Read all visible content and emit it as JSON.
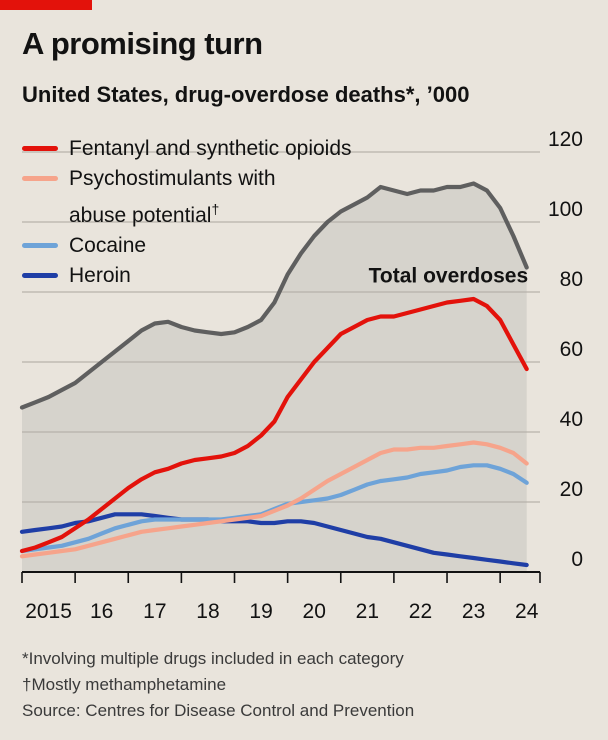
{
  "header": {
    "title": "A promising turn",
    "subtitle": "United States, drug-overdose deaths*, ’000"
  },
  "legend": [
    {
      "line1": "Fentanyl and synthetic opioids",
      "color": "#e3120b"
    },
    {
      "line1": "Psychostimulants with",
      "line2": "abuse potential",
      "sup": "†",
      "color": "#f6a48b"
    },
    {
      "line1": "Cocaine",
      "color": "#6ea3d8"
    },
    {
      "line1": "Heroin",
      "color": "#1f3ea6"
    }
  ],
  "notes": {
    "footnote1": "*Involving multiple drugs included in each category",
    "footnote2": "†Mostly methamphetamine",
    "source": "Source: Centres for Disease Control and Prevention"
  },
  "chart_data": {
    "type": "line",
    "title": "A promising turn",
    "subtitle": "United States, drug-overdose deaths*, ’000",
    "xlabel": "",
    "ylabel": "",
    "xlim": [
      2015,
      2024.75
    ],
    "ylim": [
      0,
      120
    ],
    "yticks": [
      0,
      20,
      40,
      60,
      80,
      100,
      120
    ],
    "xticks": [
      {
        "value": 2015.5,
        "label": "2015"
      },
      {
        "value": 2016.5,
        "label": "16"
      },
      {
        "value": 2017.5,
        "label": "17"
      },
      {
        "value": 2018.5,
        "label": "18"
      },
      {
        "value": 2019.5,
        "label": "19"
      },
      {
        "value": 2020.5,
        "label": "20"
      },
      {
        "value": 2021.5,
        "label": "21"
      },
      {
        "value": 2022.5,
        "label": "22"
      },
      {
        "value": 2023.5,
        "label": "23"
      },
      {
        "value": 2024.5,
        "label": "24"
      }
    ],
    "annotation": {
      "text": "Total overdoses",
      "x": 2021.6,
      "y": 85
    },
    "series": [
      {
        "name": "Total overdoses",
        "color": "#5f5f5f",
        "fill": "#d6d3cc",
        "x": [
          2015,
          2015.25,
          2015.5,
          2015.75,
          2016,
          2016.25,
          2016.5,
          2016.75,
          2017,
          2017.25,
          2017.5,
          2017.75,
          2018,
          2018.25,
          2018.5,
          2018.75,
          2019,
          2019.25,
          2019.5,
          2019.75,
          2020,
          2020.25,
          2020.5,
          2020.75,
          2021,
          2021.25,
          2021.5,
          2021.75,
          2022,
          2022.25,
          2022.5,
          2022.75,
          2023,
          2023.25,
          2023.5,
          2023.75,
          2024,
          2024.25,
          2024.5
        ],
        "values": [
          47,
          48.5,
          50,
          52,
          54,
          57,
          60,
          63,
          66,
          69,
          71,
          71.5,
          70,
          69,
          68.5,
          68,
          68.5,
          70,
          72,
          77,
          85,
          91,
          96,
          100,
          103,
          105,
          107,
          110,
          109,
          108,
          109,
          109,
          110,
          110,
          111,
          109,
          104,
          96,
          87
        ]
      },
      {
        "name": "Fentanyl and synthetic opioids",
        "color": "#e3120b",
        "x": [
          2015,
          2015.25,
          2015.5,
          2015.75,
          2016,
          2016.25,
          2016.5,
          2016.75,
          2017,
          2017.25,
          2017.5,
          2017.75,
          2018,
          2018.25,
          2018.5,
          2018.75,
          2019,
          2019.25,
          2019.5,
          2019.75,
          2020,
          2020.25,
          2020.5,
          2020.75,
          2021,
          2021.25,
          2021.5,
          2021.75,
          2022,
          2022.25,
          2022.5,
          2022.75,
          2023,
          2023.25,
          2023.5,
          2023.75,
          2024,
          2024.25,
          2024.5
        ],
        "values": [
          6,
          7,
          8.5,
          10,
          12.5,
          15,
          18,
          21,
          24,
          26.5,
          28.5,
          29.5,
          31,
          32,
          32.5,
          33,
          34,
          36,
          39,
          43,
          50,
          55,
          60,
          64,
          68,
          70,
          72,
          73,
          73,
          74,
          75,
          76,
          77,
          77.5,
          78,
          76,
          72,
          65,
          58
        ]
      },
      {
        "name": "Psychostimulants with abuse potential",
        "color": "#f6a48b",
        "x": [
          2015,
          2015.25,
          2015.5,
          2015.75,
          2016,
          2016.25,
          2016.5,
          2016.75,
          2017,
          2017.25,
          2017.5,
          2017.75,
          2018,
          2018.25,
          2018.5,
          2018.75,
          2019,
          2019.25,
          2019.5,
          2019.75,
          2020,
          2020.25,
          2020.5,
          2020.75,
          2021,
          2021.25,
          2021.5,
          2021.75,
          2022,
          2022.25,
          2022.5,
          2022.75,
          2023,
          2023.25,
          2023.5,
          2023.75,
          2024,
          2024.25,
          2024.5
        ],
        "values": [
          4.5,
          5,
          5.5,
          6,
          6.5,
          7.5,
          8.5,
          9.5,
          10.5,
          11.5,
          12,
          12.5,
          13,
          13.5,
          14,
          14.5,
          15,
          15.5,
          16,
          17.5,
          19,
          21,
          23.5,
          26,
          28,
          30,
          32,
          34,
          35,
          35,
          35.5,
          35.5,
          36,
          36.5,
          37,
          36.5,
          35.5,
          34,
          31
        ]
      },
      {
        "name": "Cocaine",
        "color": "#6ea3d8",
        "x": [
          2015,
          2015.25,
          2015.5,
          2015.75,
          2016,
          2016.25,
          2016.5,
          2016.75,
          2017,
          2017.25,
          2017.5,
          2017.75,
          2018,
          2018.25,
          2018.5,
          2018.75,
          2019,
          2019.25,
          2019.5,
          2019.75,
          2020,
          2020.25,
          2020.5,
          2020.75,
          2021,
          2021.25,
          2021.5,
          2021.75,
          2022,
          2022.25,
          2022.5,
          2022.75,
          2023,
          2023.25,
          2023.5,
          2023.75,
          2024,
          2024.25,
          2024.5
        ],
        "values": [
          6,
          6.5,
          7,
          7.5,
          8.5,
          9.5,
          11,
          12.5,
          13.5,
          14.5,
          15,
          15,
          15,
          15,
          15,
          15,
          15.5,
          16,
          16.5,
          18,
          19.5,
          20,
          20.5,
          21,
          22,
          23.5,
          25,
          26,
          26.5,
          27,
          28,
          28.5,
          29,
          30,
          30.5,
          30.5,
          29.5,
          28,
          25.5
        ]
      },
      {
        "name": "Heroin",
        "color": "#1f3ea6",
        "x": [
          2015,
          2015.25,
          2015.5,
          2015.75,
          2016,
          2016.25,
          2016.5,
          2016.75,
          2017,
          2017.25,
          2017.5,
          2017.75,
          2018,
          2018.25,
          2018.5,
          2018.75,
          2019,
          2019.25,
          2019.5,
          2019.75,
          2020,
          2020.25,
          2020.5,
          2020.75,
          2021,
          2021.25,
          2021.5,
          2021.75,
          2022,
          2022.25,
          2022.5,
          2022.75,
          2023,
          2023.25,
          2023.5,
          2023.75,
          2024,
          2024.25,
          2024.5
        ],
        "values": [
          11.5,
          12,
          12.5,
          13,
          14,
          14.5,
          15.5,
          16.5,
          16.5,
          16.5,
          16,
          15.5,
          15,
          15,
          15,
          14.5,
          14.5,
          14.5,
          14,
          14,
          14.5,
          14.5,
          14,
          13,
          12,
          11,
          10,
          9.5,
          8.5,
          7.5,
          6.5,
          5.5,
          5,
          4.5,
          4,
          3.5,
          3,
          2.5,
          2
        ]
      }
    ]
  }
}
